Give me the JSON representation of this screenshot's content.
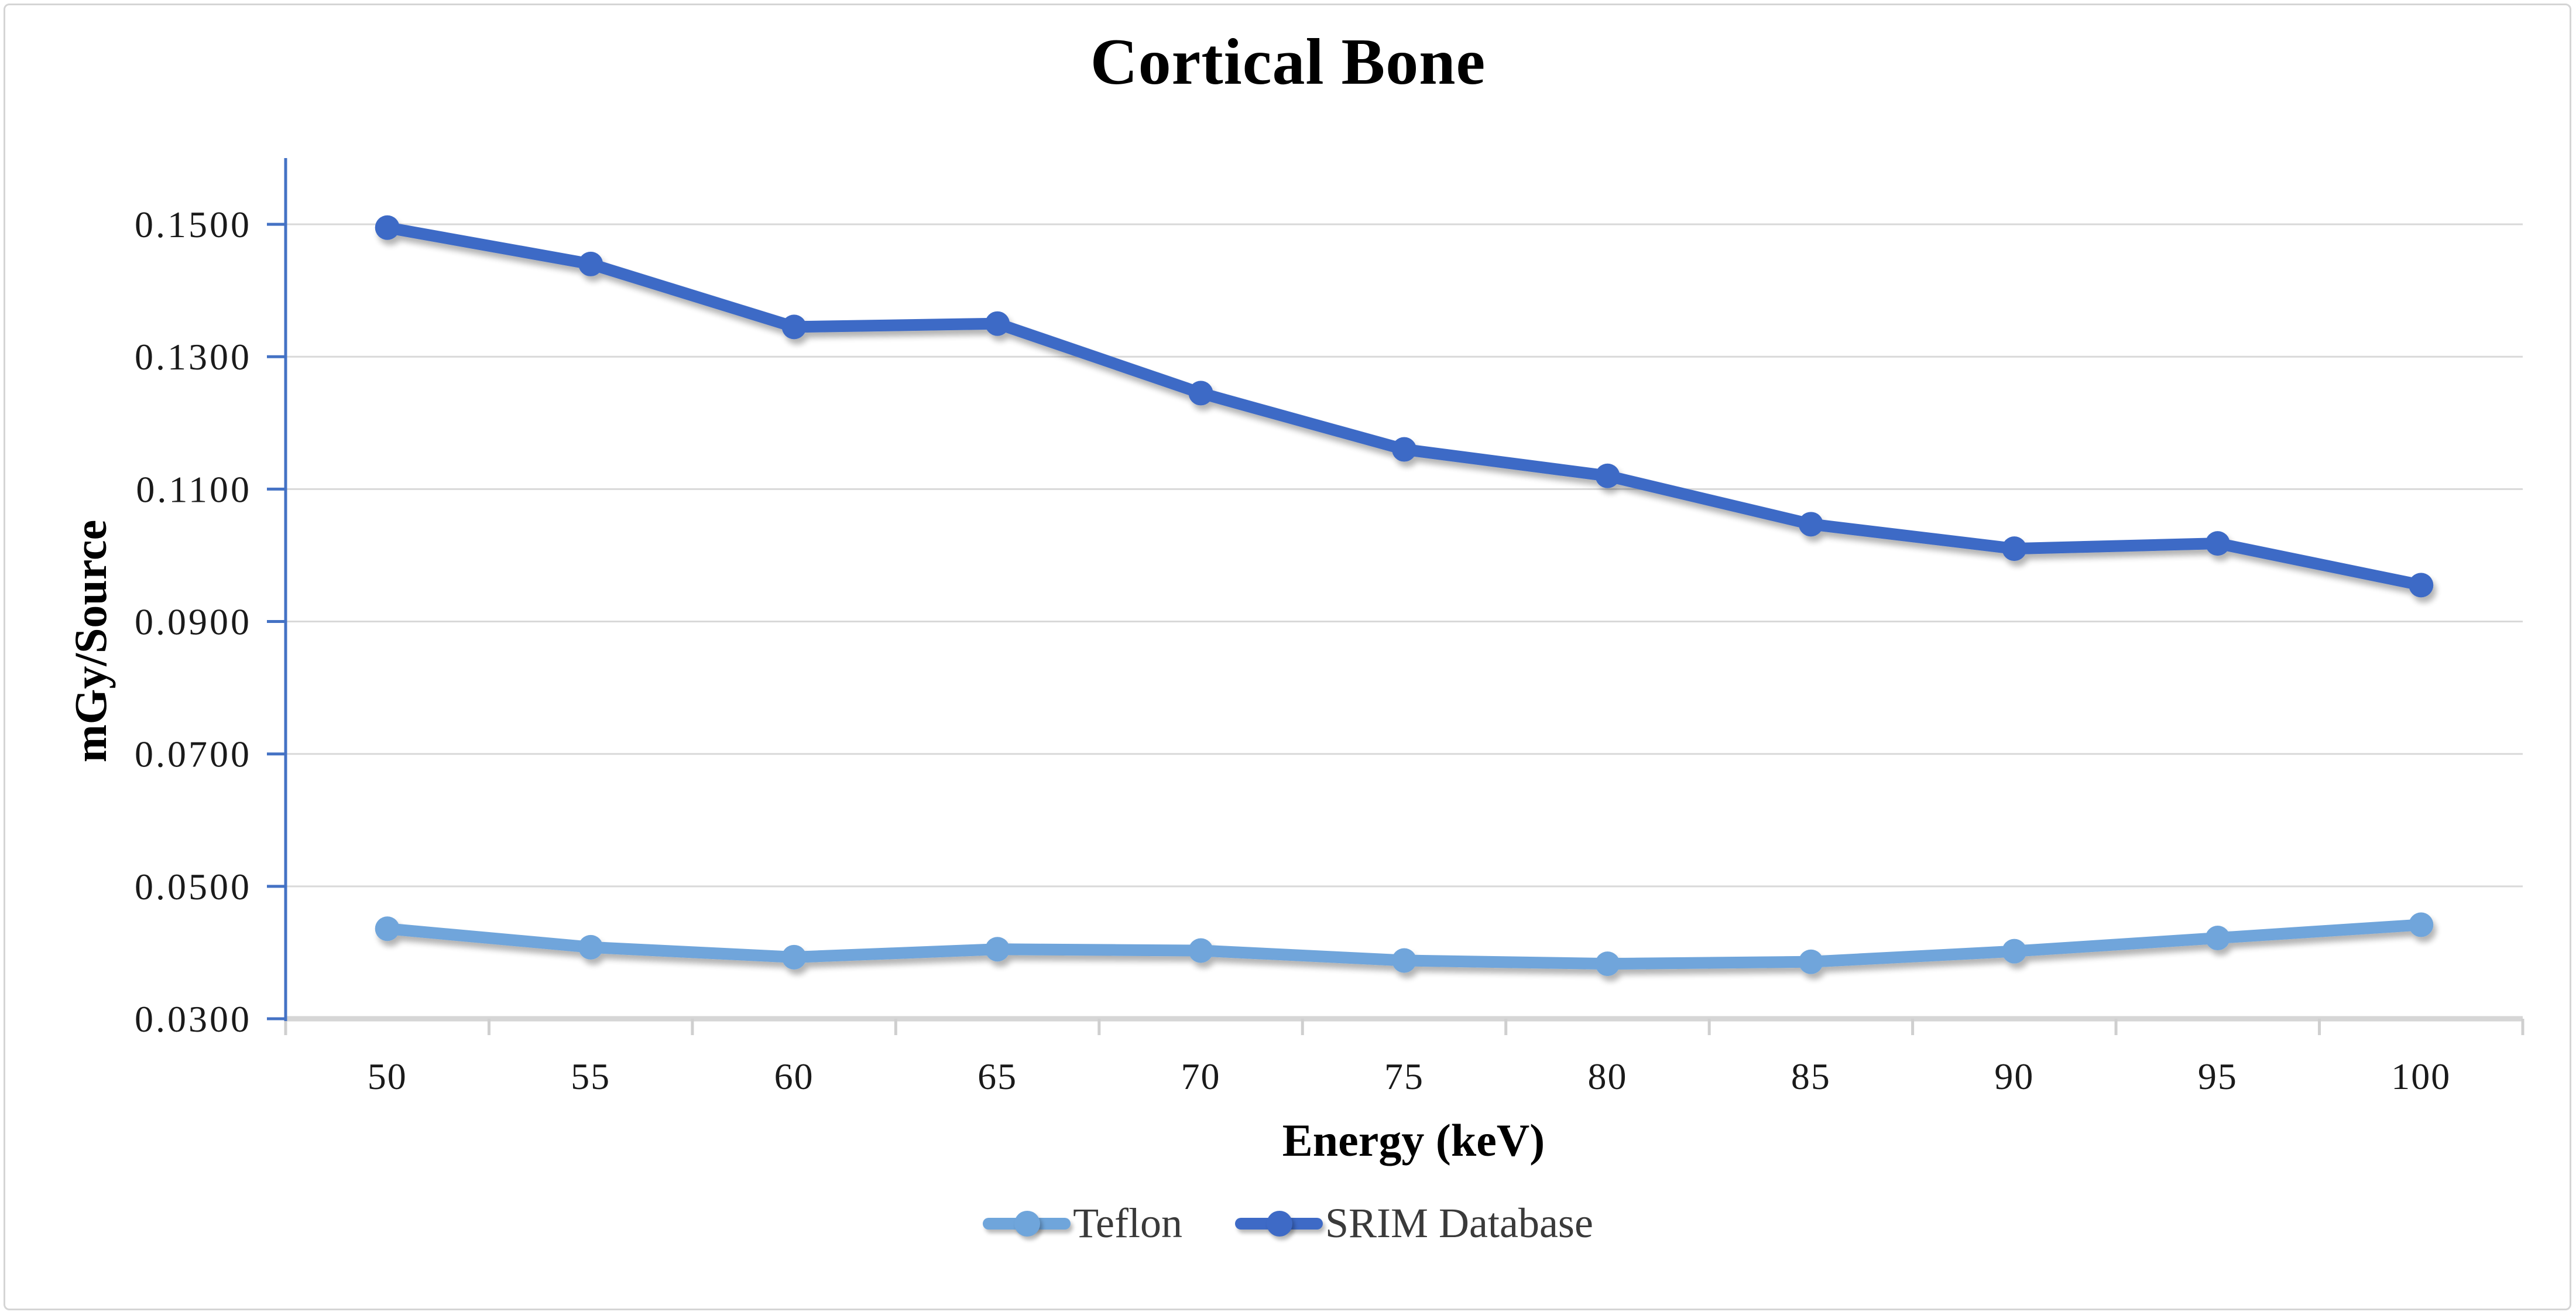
{
  "title": "Cortical Bone",
  "colors": {
    "teflon": "#6FA5DB",
    "srim": "#3E6AC6",
    "y_axis_line": "#4472C4",
    "x_axis_line": "#D6D6D6",
    "gridline": "#D9D9D9",
    "x_tick_mark": "#CFCFCF",
    "frame_border": "#D5D5D5",
    "tick_text": "#1A1A1A"
  },
  "chart_data": {
    "type": "line",
    "title": "Cortical Bone",
    "xlabel": "Energy (keV)",
    "ylabel": "mGy/Source",
    "categories": [
      50,
      55,
      60,
      65,
      70,
      75,
      80,
      85,
      90,
      95,
      100
    ],
    "x_tick_labels": [
      "50",
      "55",
      "60",
      "65",
      "70",
      "75",
      "80",
      "85",
      "90",
      "95",
      "100"
    ],
    "y_ticks": [
      0.03,
      0.05,
      0.07,
      0.09,
      0.11,
      0.13,
      0.15
    ],
    "y_tick_labels": [
      "0.0300",
      "0.0500",
      "0.0700",
      "0.0900",
      "0.1100",
      "0.1300",
      "0.1500"
    ],
    "ylim": [
      0.03,
      0.16
    ],
    "grid": true,
    "legend_position": "bottom",
    "series": [
      {
        "name": "Teflon",
        "color": "#6FA5DB",
        "values": [
          0.0436,
          0.0408,
          0.0393,
          0.0405,
          0.0403,
          0.0388,
          0.0383,
          0.0386,
          0.0402,
          0.0422,
          0.0442
        ]
      },
      {
        "name": "SRIM Database",
        "color": "#3E6AC6",
        "values": [
          0.1495,
          0.144,
          0.1345,
          0.135,
          0.1245,
          0.116,
          0.112,
          0.1047,
          0.101,
          0.1018,
          0.0955
        ]
      }
    ]
  }
}
